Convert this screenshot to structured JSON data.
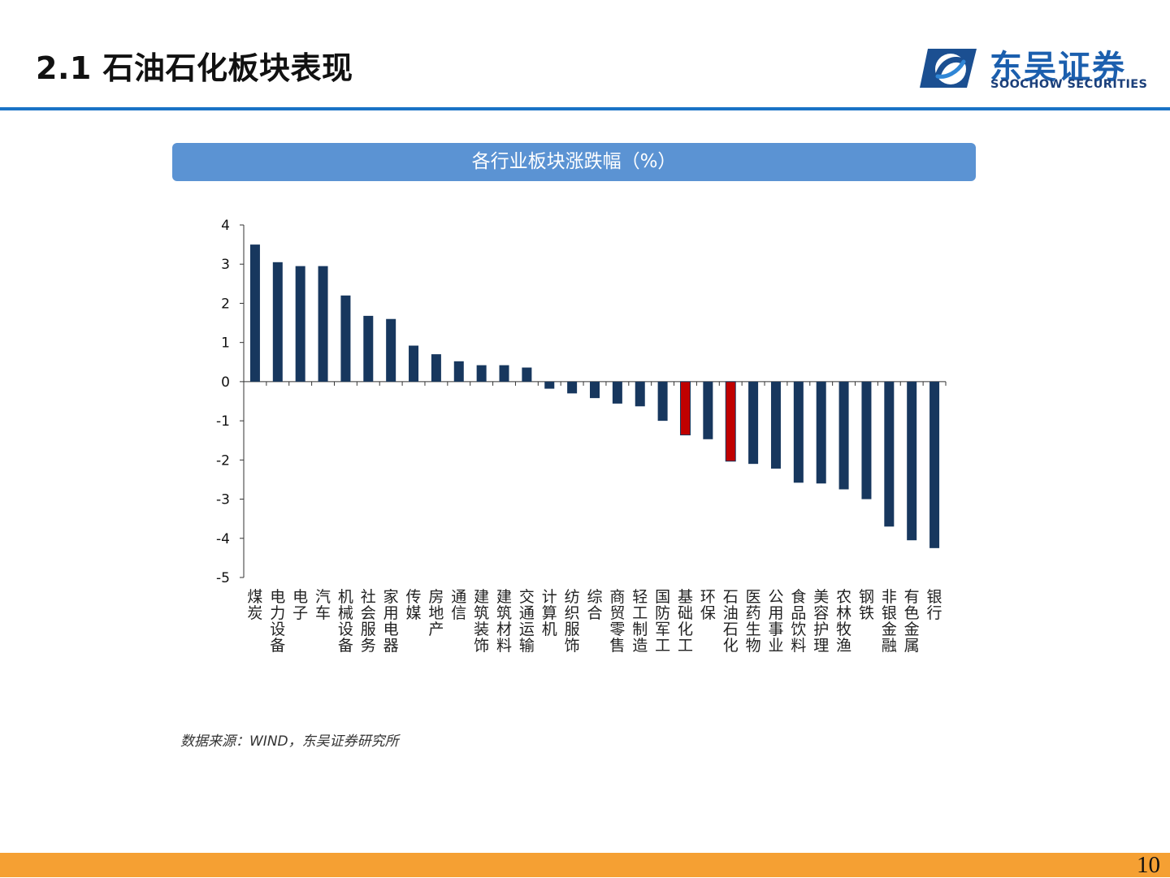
{
  "header": {
    "title": "2.1 石油石化板块表现",
    "logo_cn": "东吴证券",
    "logo_en": "SOOCHOW SECURITIES"
  },
  "chart_banner": "各行业板块涨跌幅（%）",
  "source": "数据来源：WIND，东吴证券研究所",
  "page_number": "10",
  "colors": {
    "bar": "#17375e",
    "highlight": "#c00000",
    "accent": "#1a73c6",
    "banner": "#5b93d3",
    "footer": "#f5a033"
  },
  "chart_data": {
    "type": "bar",
    "title": "各行业板块涨跌幅（%）",
    "xlabel": "",
    "ylabel": "",
    "ylim": [
      -5,
      4
    ],
    "yticks": [
      "4",
      "3",
      "2",
      "1",
      "0",
      "-1",
      "-2",
      "-3",
      "-4",
      "-5"
    ],
    "grid": false,
    "categories": [
      "煤炭",
      "电力设备",
      "电子",
      "汽车",
      "机械设备",
      "社会服务",
      "家用电器",
      "传媒",
      "房地产",
      "通信",
      "建筑装饰",
      "建筑材料",
      "交通运输",
      "计算机",
      "纺织服饰",
      "综合",
      "商贸零售",
      "轻工制造",
      "国防军工",
      "基础化工",
      "环保",
      "石油石化",
      "医药生物",
      "公用事业",
      "食品饮料",
      "美容护理",
      "农林牧渔",
      "钢铁",
      "非银金融",
      "有色金属",
      "银行"
    ],
    "values": [
      3.5,
      3.05,
      2.95,
      2.95,
      2.2,
      1.68,
      1.6,
      0.92,
      0.7,
      0.52,
      0.42,
      0.42,
      0.36,
      -0.18,
      -0.3,
      -0.42,
      -0.56,
      -0.63,
      -1.0,
      -1.36,
      -1.47,
      -2.03,
      -2.1,
      -2.22,
      -2.58,
      -2.6,
      -2.75,
      -3.0,
      -3.7,
      -4.05,
      -4.25
    ],
    "highlight": [
      "基础化工",
      "石油石化"
    ]
  }
}
